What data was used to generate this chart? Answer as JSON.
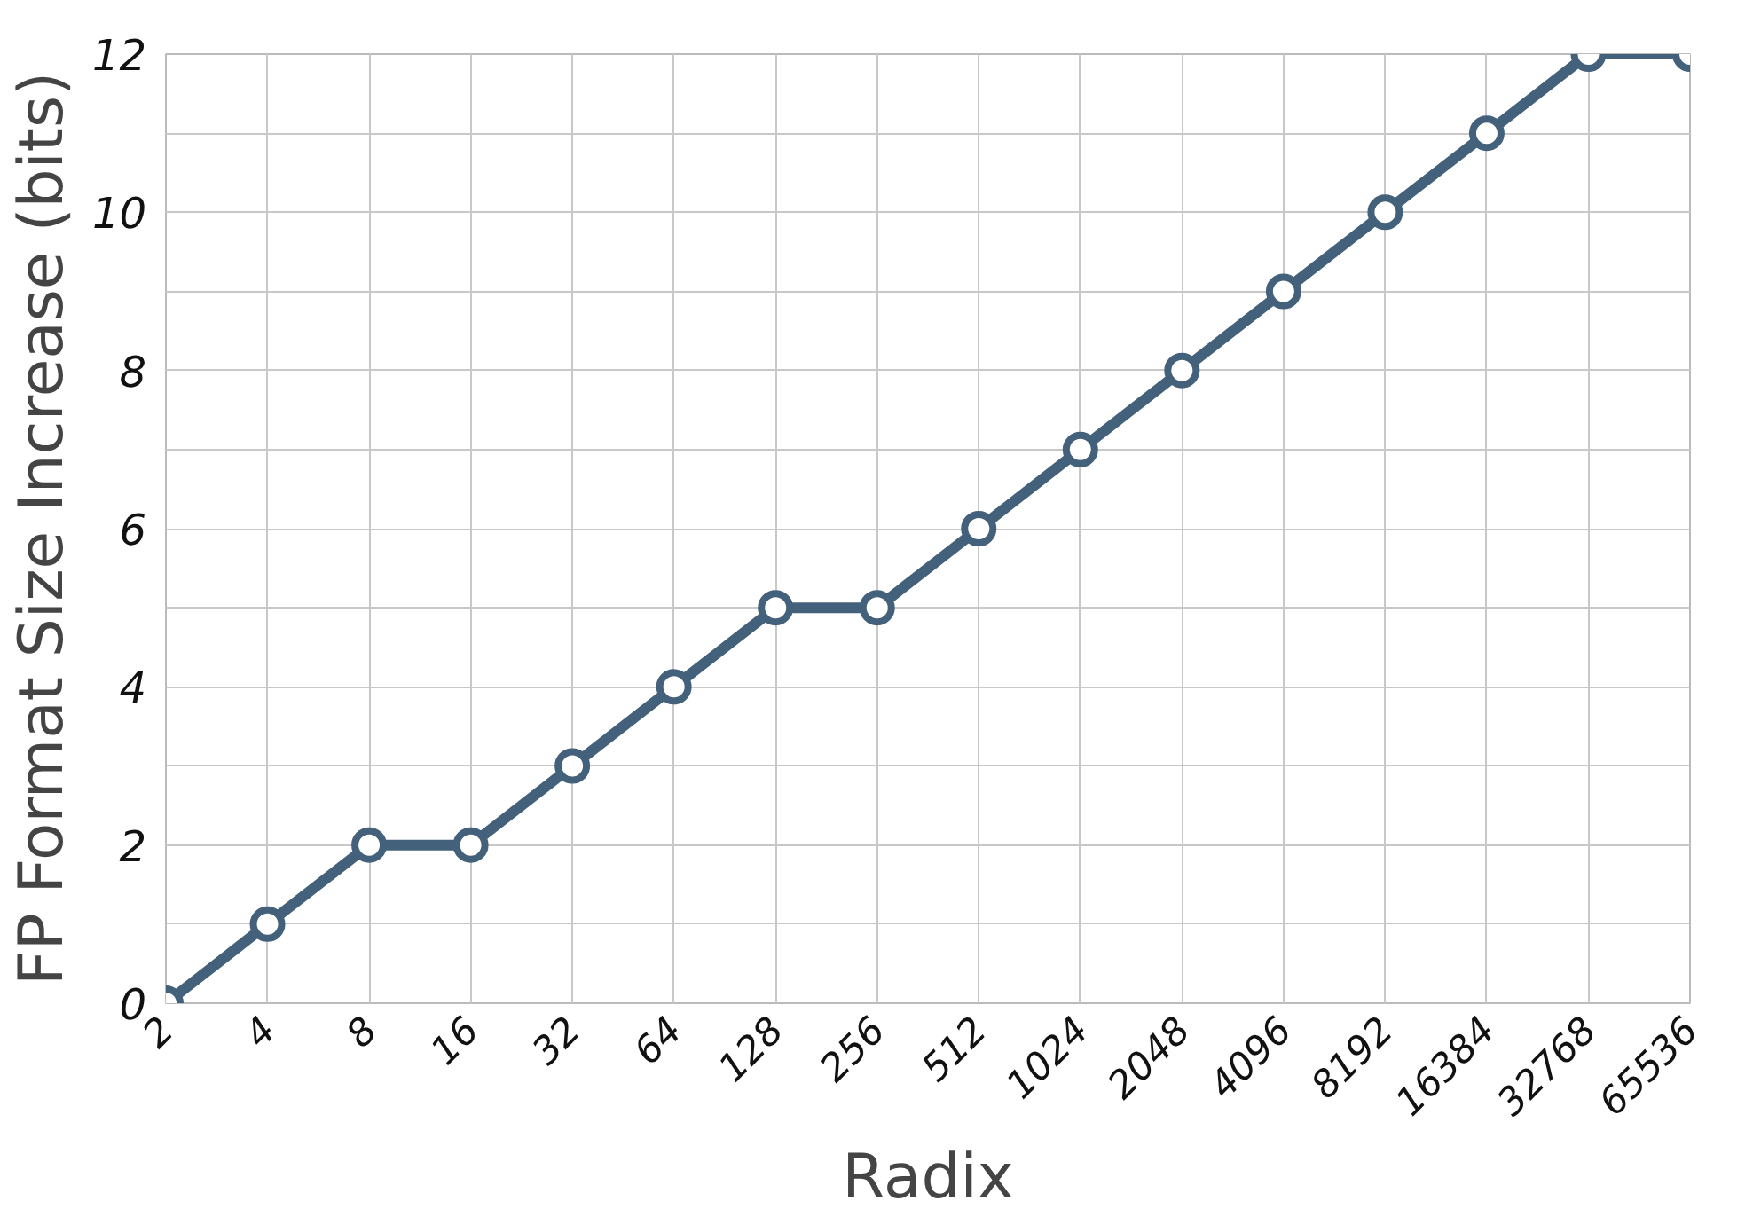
{
  "chart_data": {
    "type": "line",
    "xlabel": "Radix",
    "ylabel": "FP Format Size Increase (bits)",
    "categories": [
      "2",
      "4",
      "8",
      "16",
      "32",
      "64",
      "128",
      "256",
      "512",
      "1024",
      "2048",
      "4096",
      "8192",
      "16384",
      "32768",
      "65536"
    ],
    "series": [
      {
        "color": "#44617b",
        "values": [
          0,
          1,
          2,
          2,
          3,
          4,
          5,
          5,
          6,
          7,
          8,
          9,
          10,
          11,
          12,
          12
        ]
      }
    ],
    "ylim": [
      0,
      12
    ],
    "yticks": [
      0,
      {
        "value": 1,
        "label": null
      },
      2,
      {
        "value": 3,
        "label": null
      },
      4,
      {
        "value": 5,
        "label": null
      },
      6,
      {
        "value": 7,
        "label": null
      },
      8,
      {
        "value": 9,
        "label": null
      },
      10,
      {
        "value": 11,
        "label": null
      },
      12
    ],
    "grid": true,
    "marker": "circle",
    "line_style": "solid"
  }
}
